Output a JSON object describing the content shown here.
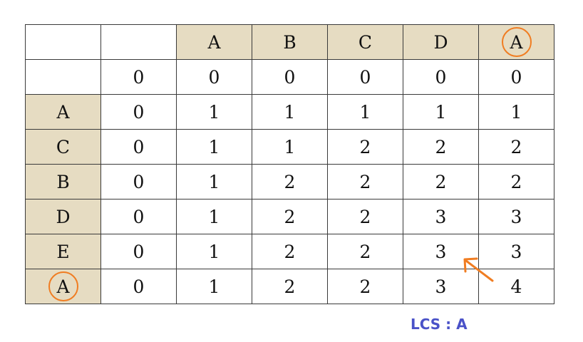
{
  "table": {
    "columns": [
      "",
      "",
      "A",
      "B",
      "C",
      "D",
      "A"
    ],
    "rows": [
      [
        "",
        "0",
        "0",
        "0",
        "0",
        "0",
        "0"
      ],
      [
        "A",
        "0",
        "1",
        "1",
        "1",
        "1",
        "1"
      ],
      [
        "C",
        "0",
        "1",
        "1",
        "2",
        "2",
        "2"
      ],
      [
        "B",
        "0",
        "1",
        "2",
        "2",
        "2",
        "2"
      ],
      [
        "D",
        "0",
        "1",
        "2",
        "2",
        "3",
        "3"
      ],
      [
        "E",
        "0",
        "1",
        "2",
        "2",
        "3",
        "3"
      ],
      [
        "A",
        "0",
        "1",
        "2",
        "2",
        "3",
        "4"
      ]
    ]
  },
  "highlight_color": "#e6dcc2",
  "circle_color": "#f07d22",
  "caption": "LCS : A",
  "caption_color": "#4a52c8"
}
